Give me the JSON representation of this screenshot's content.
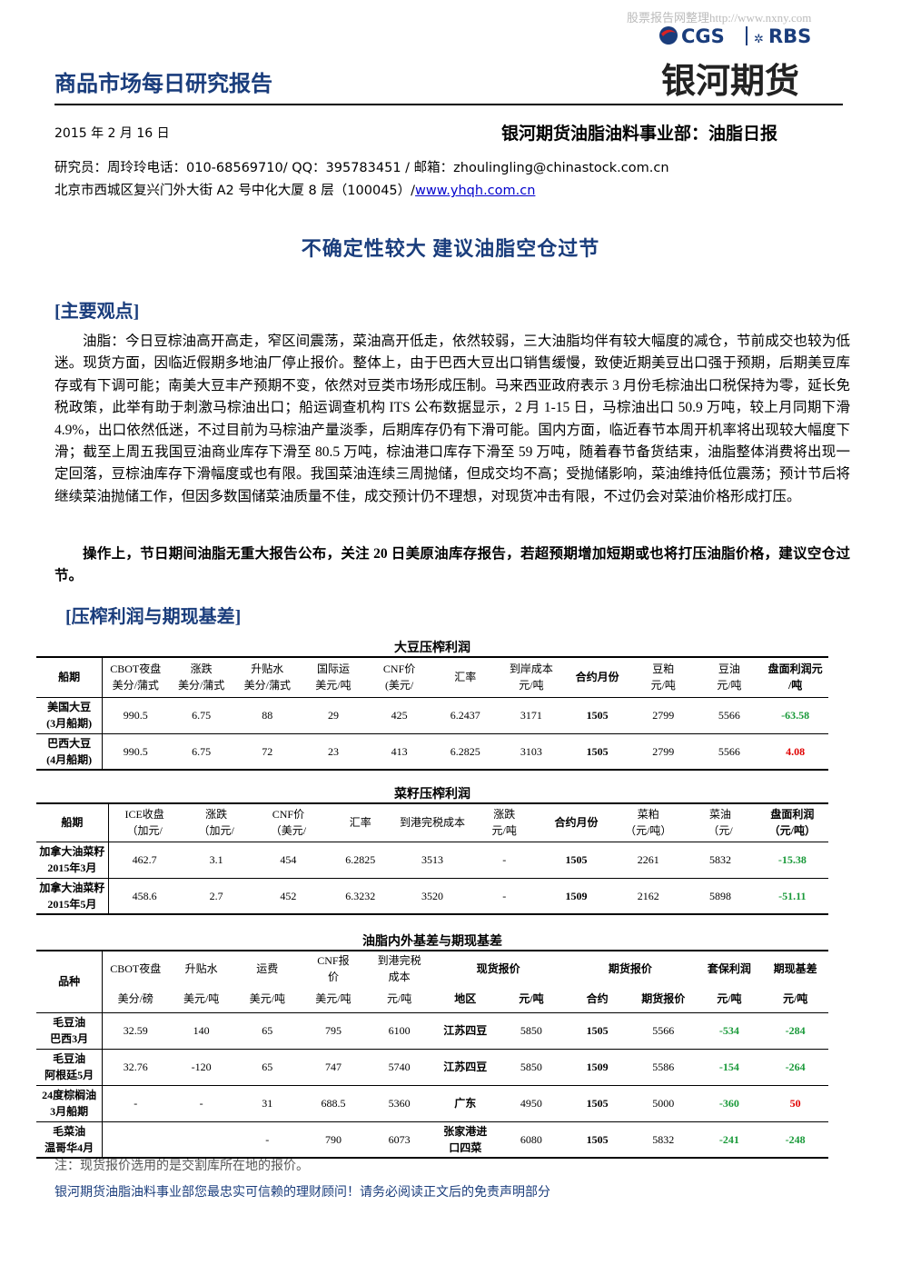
{
  "watermark": "股票报告网整理http://www.nxny.com",
  "logo": {
    "cgs": "CGS",
    "rbs": "RBS",
    "name": "银河期货"
  },
  "header": {
    "title": "商品市场每日研究报告",
    "date": "2015 年 2 月 16 日",
    "department": "银河期货油脂油料事业部：油脂日报",
    "contact": "研究员：周玲玲电话：010-68569710/ QQ：395783451 / 邮箱：zhoulingling@chinastock.com.cn",
    "address": "北京市西城区复兴门外大街 A2 号中化大厦 8 层（100045）/",
    "website": "www.yhqh.com.cn"
  },
  "headline": "不确定性较大 建议油脂空仓过节",
  "section1": {
    "title": "[主要观点]",
    "paragraphs": [
      "油脂：今日豆棕油高开高走，窄区间震荡，菜油高开低走，依然较弱，三大油脂均伴有较大幅度的减仓，节前成交也较为低迷。现货方面，因临近假期多地油厂停止报价。整体上，由于巴西大豆出口销售缓慢，致使近期美豆出口强于预期，后期美豆库存或有下调可能；南美大豆丰产预期不变，依然对豆类市场形成压制。马来西亚政府表示 3 月份毛棕油出口税保持为零，延长免税政策，此举有助于刺激马棕油出口；船运调查机构 ITS 公布数据显示，2 月 1-15 日，马棕油出口 50.9 万吨，较上月同期下滑 4.9%，出口依然低迷，不过目前为马棕油产量淡季，后期库存仍有下滑可能。国内方面，临近春节本周开机率将出现较大幅度下滑；截至上周五我国豆油商业库存下滑至 80.5 万吨，棕油港口库存下滑至 59 万吨，随着春节备货结束，油脂整体消费将出现一定回落，豆棕油库存下滑幅度或也有限。我国菜油连续三周抛储，但成交均不高；受抛储影响，菜油维持低位震荡；预计节后将继续菜油抛储工作，但因多数国储菜油质量不佳，成交预计仍不理想，对现货冲击有限，不过仍会对菜油价格形成打压。",
      "操作上，节日期间油脂无重大报告公布，关注 20 日美原油库存报告，若超预期增加短期或也将打压油脂价格，建议空仓过节。"
    ]
  },
  "section2": {
    "title": "[压榨利润与期现基差]"
  },
  "tables": [
    {
      "title": "大豆压榨利润",
      "header": [
        [
          "船期",
          "CBOT夜盘\n美分/蒲式",
          "涨跌\n美分/蒲式",
          "升贴水\n美分/蒲式",
          "国际运\n美元/吨",
          "CNF价\n(美元/",
          "汇率",
          "到岸成本\n元/吨",
          "合约月份",
          "豆粕\n元/吨",
          "豆油\n元/吨",
          "盘面利润元\n/吨"
        ]
      ],
      "rows": [
        [
          "美国大豆\n(3月船期)",
          "990.5",
          "6.75",
          "88",
          "29",
          "425",
          "6.2437",
          "3171",
          "1505",
          "2799",
          "5566",
          "-63.58"
        ],
        [
          "巴西大豆\n(4月船期)",
          "990.5",
          "6.75",
          "72",
          "23",
          "413",
          "6.2825",
          "3103",
          "1505",
          "2799",
          "5566",
          "4.08"
        ]
      ]
    },
    {
      "title": "菜籽压榨利润",
      "header": [
        [
          "船期",
          "ICE收盘\n（加元/",
          "涨跌\n（加元/",
          "CNF价\n（美元/",
          "汇率",
          "到港完税成本",
          "涨跌\n元/吨",
          "合约月份",
          "菜粕\n（元/吨）",
          "菜油\n（元/",
          "盘面利润\n（元/吨）"
        ]
      ],
      "rows": [
        [
          "加拿大油菜籽\n2015年3月",
          "462.7",
          "3.1",
          "454",
          "6.2825",
          "3513",
          "-",
          "1505",
          "2261",
          "5832",
          "-15.38"
        ],
        [
          "加拿大油菜籽\n2015年5月",
          "458.6",
          "2.7",
          "452",
          "6.3232",
          "3520",
          "-",
          "1509",
          "2162",
          "5898",
          "-51.11"
        ]
      ]
    },
    {
      "title": "油脂内外基差与期现基差",
      "header": [
        [
          "品种",
          "CBOT夜盘",
          "升贴水",
          "运费",
          "CNF报\n价",
          "到港完税\n成本",
          "现货报价",
          "期货报价",
          "套保利润",
          "期现基差"
        ],
        [
          "美分/磅",
          "美元/吨",
          "美元/吨",
          "美元/吨",
          "元/吨",
          "地区",
          "元/吨",
          "合约",
          "期货报价",
          "元/吨",
          "元/吨"
        ]
      ],
      "rows": [
        [
          "毛豆油\n巴西3月",
          "32.59",
          "140",
          "65",
          "795",
          "6100",
          "江苏四豆",
          "5850",
          "1505",
          "5566",
          "-534",
          "-284"
        ],
        [
          "毛豆油\n阿根廷5月",
          "32.76",
          "-120",
          "65",
          "747",
          "5740",
          "江苏四豆",
          "5850",
          "1509",
          "5586",
          "-154",
          "-264"
        ],
        [
          "24度棕榈油\n3月船期",
          "-",
          "-",
          "31",
          "688.5",
          "5360",
          "广东",
          "4950",
          "1505",
          "5000",
          "-360",
          "50"
        ],
        [
          "毛菜油\n温哥华4月",
          null,
          null,
          "-",
          "790",
          "6073",
          "张家港进\n口四菜",
          "6080",
          "1505",
          "5832",
          "-241",
          "-248"
        ]
      ]
    }
  ],
  "note": "注：现货报价选用的是交割库所在地的报价。",
  "footer": "银河期货油脂油料事业部您最忠实可信赖的理财顾问！请务必阅读正文后的免责声明部分"
}
